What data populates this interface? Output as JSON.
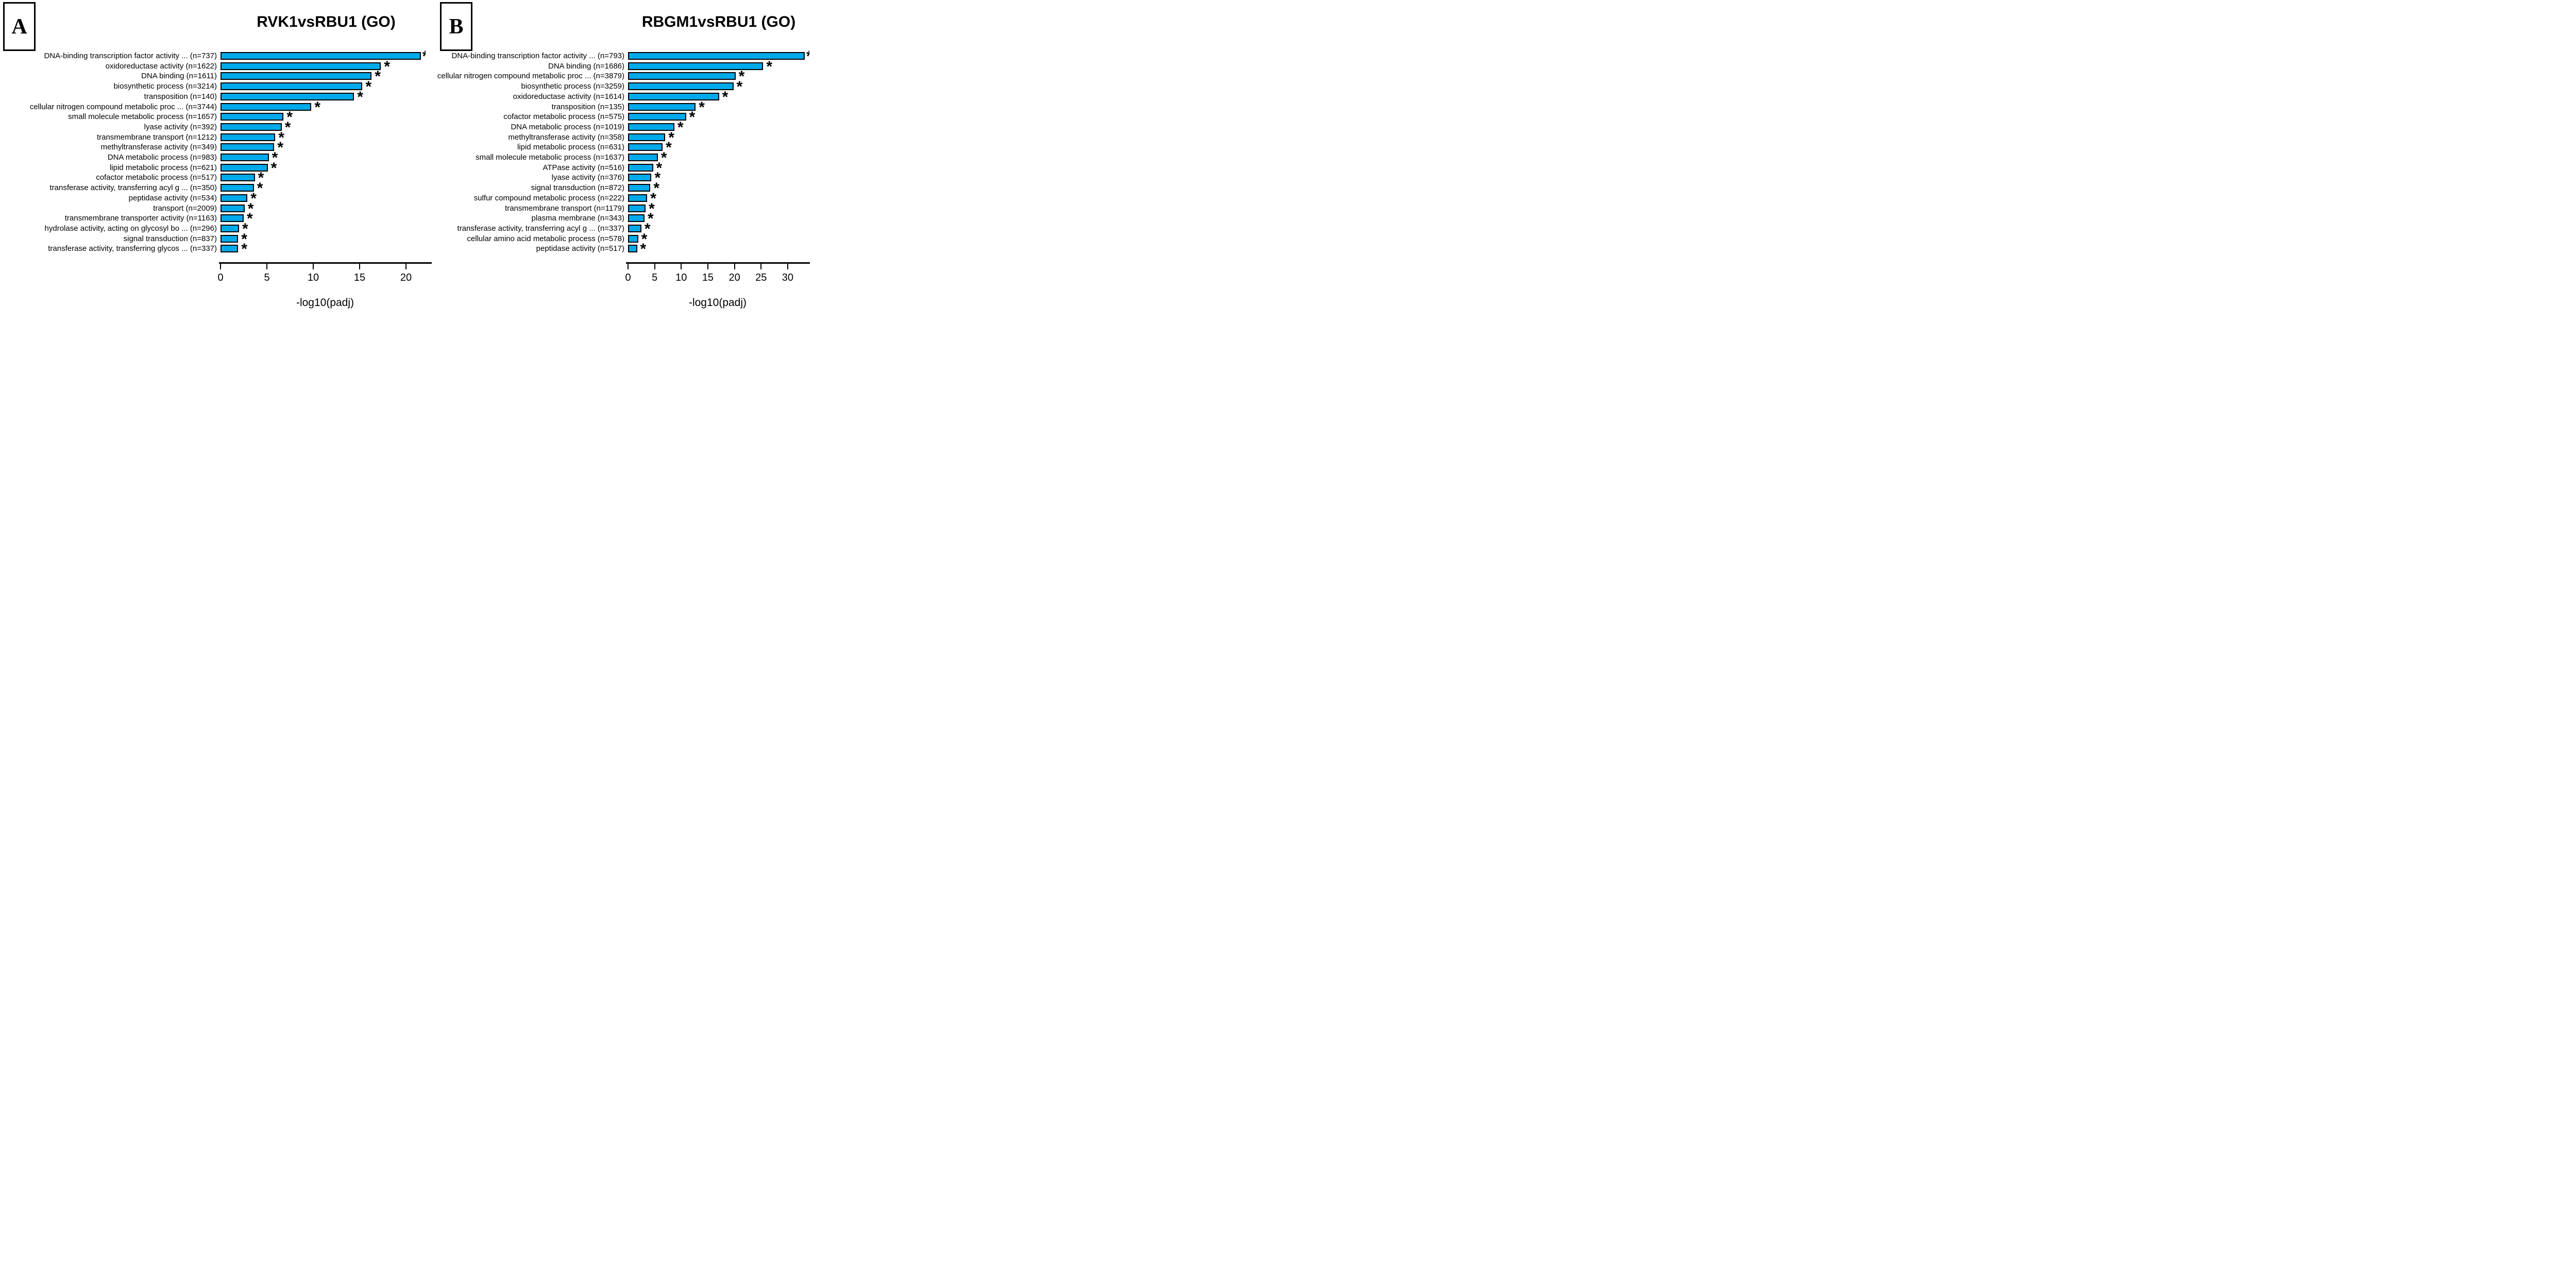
{
  "figure": {
    "background_color": "#ffffff",
    "bar_fill_color": "#00A9EA",
    "bar_border_color": "#000000",
    "significance_marker": "*"
  },
  "chart_data": [
    {
      "type": "bar",
      "orientation": "horizontal",
      "panel_label": "A",
      "title": "RVK1vsRBU1 (GO)",
      "xlabel": "-log10(padj)",
      "x_ticks": [
        0,
        5,
        10,
        15,
        20
      ],
      "xlim": [
        0,
        22.9
      ],
      "grid": false,
      "bar_color": "#00A9EA",
      "categories": [
        "DNA-binding transcription factor activity ... (n=737)",
        "oxidoreductase activity (n=1622)",
        "DNA binding (n=1611)",
        "biosynthetic process (n=3214)",
        "transposition (n=140)",
        "cellular nitrogen compound metabolic proc ... (n=3744)",
        "small molecule metabolic process (n=1657)",
        "lyase activity (n=392)",
        "transmembrane transport (n=1212)",
        "methyltransferase activity (n=349)",
        "DNA metabolic process (n=983)",
        "lipid metabolic process (n=621)",
        "cofactor metabolic process (n=517)",
        "transferase activity, transferring acyl g ... (n=350)",
        "peptidase activity (n=534)",
        "transport (n=2009)",
        "transmembrane transporter activity (n=1163)",
        "hydrolase activity, acting on glycosyl bo ... (n=296)",
        "signal transduction (n=837)",
        "transferase activity, transferring glycos ... (n=337)"
      ],
      "values": [
        21.6,
        17.3,
        16.3,
        15.3,
        14.4,
        9.8,
        6.8,
        6.6,
        5.9,
        5.8,
        5.2,
        5.1,
        3.7,
        3.6,
        2.9,
        2.6,
        2.5,
        2.0,
        1.9,
        1.9
      ],
      "significance": [
        "*",
        "*",
        "*",
        "*",
        "*",
        "*",
        "*",
        "*",
        "*",
        "*",
        "*",
        "*",
        "*",
        "*",
        "*",
        "*",
        "*",
        "*",
        "*",
        "*"
      ],
      "significance_clipped": [
        true,
        false,
        false,
        false,
        false,
        false,
        false,
        false,
        false,
        false,
        false,
        false,
        false,
        false,
        false,
        false,
        false,
        false,
        false,
        false
      ]
    },
    {
      "type": "bar",
      "orientation": "horizontal",
      "panel_label": "B",
      "title": "RBGM1vsRBU1 (GO)",
      "xlabel": "-log10(padj)",
      "x_ticks": [
        0,
        5,
        10,
        15,
        20,
        25,
        30
      ],
      "xlim": [
        0,
        34.2
      ],
      "grid": false,
      "bar_color": "#00A9EA",
      "categories": [
        "DNA-binding transcription factor activity ... (n=793)",
        "DNA binding (n=1686)",
        "cellular nitrogen compound metabolic proc ... (n=3879)",
        "biosynthetic process (n=3259)",
        "oxidoreductase activity (n=1614)",
        "transposition (n=135)",
        "cofactor metabolic process (n=575)",
        "DNA metabolic process (n=1019)",
        "methyltransferase activity (n=358)",
        "lipid metabolic process (n=631)",
        "small molecule metabolic process (n=1637)",
        "ATPase activity (n=516)",
        "lyase activity (n=376)",
        "signal transduction (n=872)",
        "sulfur compound metabolic process (n=222)",
        "transmembrane transport (n=1179)",
        "plasma membrane (n=343)",
        "transferase activity, transferring acyl g ... (n=337)",
        "cellular amino acid metabolic process (n=578)",
        "peptidase activity (n=517)"
      ],
      "values": [
        33.2,
        25.4,
        20.2,
        19.8,
        17.1,
        12.7,
        10.9,
        8.7,
        7.0,
        6.5,
        5.6,
        4.7,
        4.4,
        4.2,
        3.6,
        3.3,
        3.1,
        2.5,
        1.9,
        1.7
      ],
      "significance": [
        "*",
        "*",
        "*",
        "*",
        "*",
        "*",
        "*",
        "*",
        "*",
        "*",
        "*",
        "*",
        "*",
        "*",
        "*",
        "*",
        "*",
        "*",
        "*",
        "*"
      ],
      "significance_clipped": [
        true,
        false,
        false,
        false,
        false,
        false,
        false,
        false,
        false,
        false,
        false,
        false,
        false,
        false,
        false,
        false,
        false,
        false,
        false,
        false
      ]
    }
  ]
}
